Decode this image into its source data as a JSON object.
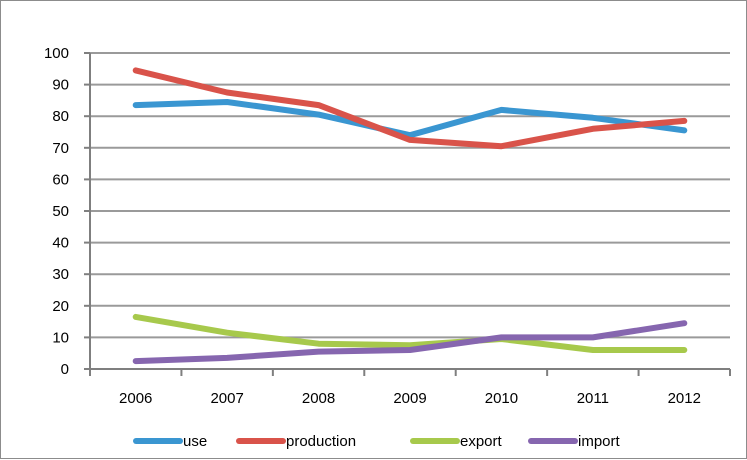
{
  "chart_data": {
    "type": "line",
    "title": "",
    "xlabel": "",
    "ylabel": "",
    "x": [
      "2006",
      "2007",
      "2008",
      "2009",
      "2010",
      "2011",
      "2012"
    ],
    "ylim": [
      0,
      100
    ],
    "yticks": [
      "0",
      "10",
      "20",
      "30",
      "40",
      "50",
      "60",
      "70",
      "80",
      "90",
      "100"
    ],
    "grid": true,
    "legend_position": "bottom",
    "series": [
      {
        "name": "use",
        "color": "#3A96D1",
        "values": [
          83.5,
          84.5,
          80.5,
          74,
          82,
          79.5,
          75.5
        ]
      },
      {
        "name": "production",
        "color": "#D9534A",
        "values": [
          94.5,
          87.5,
          83.5,
          72.5,
          70.5,
          76,
          78.5
        ]
      },
      {
        "name": "export",
        "color": "#A7C94C",
        "values": [
          16.5,
          11.5,
          8,
          7.5,
          9.5,
          6,
          6
        ]
      },
      {
        "name": "import",
        "color": "#8666AF",
        "values": [
          2.5,
          3.5,
          5.5,
          6,
          10,
          10,
          14.5
        ]
      }
    ]
  }
}
